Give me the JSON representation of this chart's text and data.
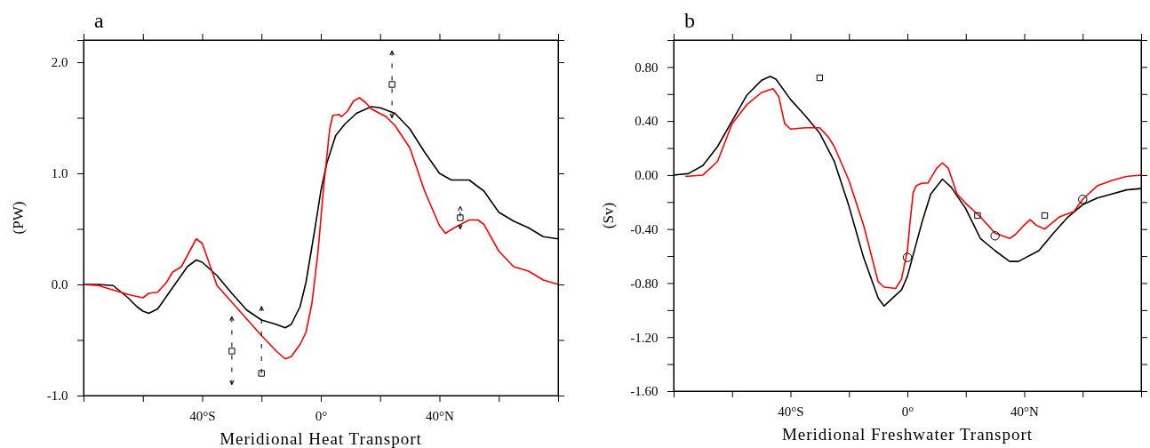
{
  "chart_data": [
    {
      "type": "line",
      "title": "a",
      "xlabel": "Meridional Heat Transport",
      "ylabel": "(PW)",
      "xlim": [
        -80,
        80
      ],
      "xticks": [
        {
          "value": -60,
          "label": null
        },
        {
          "value": -40,
          "label": "40°S"
        },
        {
          "value": -20,
          "label": null
        },
        {
          "value": 0,
          "label": "0°"
        },
        {
          "value": 20,
          "label": null
        },
        {
          "value": 40,
          "label": "40°N"
        },
        {
          "value": 60,
          "label": null
        }
      ],
      "ylim": [
        -1.0,
        2.2
      ],
      "yticks": [
        {
          "value": -1,
          "label": "-1.0"
        },
        {
          "value": -0.5,
          "label": null
        },
        {
          "value": 0,
          "label": "0.0"
        },
        {
          "value": 0.5,
          "label": null
        },
        {
          "value": 1,
          "label": "1.0"
        },
        {
          "value": 1.5,
          "label": null
        },
        {
          "value": 2,
          "label": "2.0"
        }
      ],
      "series": [
        {
          "color": "#000000",
          "x": [
            -80,
            -75,
            -70,
            -65,
            -62,
            -60,
            -58,
            -55,
            -50,
            -45,
            -42,
            -40,
            -35,
            -30,
            -25,
            -20,
            -15,
            -12,
            -10,
            -7,
            -5,
            -2,
            0,
            2,
            5,
            8,
            12,
            17,
            20,
            25,
            30,
            35,
            40,
            44,
            50,
            55,
            60,
            65,
            70,
            75,
            80
          ],
          "values": [
            0,
            0,
            -0.01,
            -0.12,
            -0.2,
            -0.24,
            -0.26,
            -0.22,
            -0.03,
            0.16,
            0.22,
            0.2,
            0.08,
            -0.08,
            -0.23,
            -0.32,
            -0.36,
            -0.39,
            -0.36,
            -0.2,
            0.02,
            0.5,
            0.84,
            1.09,
            1.34,
            1.44,
            1.54,
            1.6,
            1.59,
            1.54,
            1.4,
            1.19,
            1.0,
            0.94,
            0.94,
            0.84,
            0.65,
            0.57,
            0.51,
            0.43,
            0.41
          ]
        },
        {
          "color": "#ff0000",
          "x": [
            -80,
            -75,
            -70,
            -65,
            -60,
            -58,
            -55,
            -52,
            -50,
            -47,
            -45,
            -42,
            -40,
            -38,
            -35,
            -30,
            -25,
            -20,
            -15,
            -12,
            -10,
            -7,
            -5,
            -3,
            -1,
            1,
            3,
            4,
            6,
            7,
            9,
            11,
            13,
            15,
            17,
            22,
            25,
            30,
            35,
            40,
            42,
            45,
            50,
            53,
            55,
            60,
            65,
            70,
            75,
            80
          ],
          "values": [
            0,
            -0.01,
            -0.05,
            -0.09,
            -0.12,
            -0.08,
            -0.07,
            0.02,
            0.11,
            0.16,
            0.26,
            0.41,
            0.37,
            0.22,
            -0.01,
            -0.16,
            -0.31,
            -0.46,
            -0.6,
            -0.67,
            -0.65,
            -0.54,
            -0.43,
            -0.17,
            0.28,
            0.89,
            1.4,
            1.52,
            1.53,
            1.51,
            1.56,
            1.65,
            1.68,
            1.64,
            1.58,
            1.51,
            1.43,
            1.23,
            0.84,
            0.53,
            0.46,
            0.51,
            0.58,
            0.58,
            0.54,
            0.3,
            0.16,
            0.12,
            0.04,
            0
          ]
        },
        {
          "type": "scatter",
          "marker": "square",
          "color": "#000000",
          "x": [
            -30,
            -20,
            24,
            47
          ],
          "values": [
            -0.6,
            -0.8,
            1.8,
            0.6
          ],
          "errors": [
            [
              -0.9,
              -0.29
            ],
            [
              -0.8,
              -0.2
            ],
            [
              1.5,
              2.1
            ],
            [
              0.5,
              0.7
            ]
          ]
        }
      ]
    },
    {
      "type": "line",
      "title": "b",
      "xlabel": "Meridional Freshwater Transport",
      "ylabel": "(Sv)",
      "xlim": [
        -80,
        80
      ],
      "xticks": [
        {
          "value": -60,
          "label": null
        },
        {
          "value": -40,
          "label": "40°S"
        },
        {
          "value": -20,
          "label": null
        },
        {
          "value": 0,
          "label": "0°"
        },
        {
          "value": 20,
          "label": null
        },
        {
          "value": 40,
          "label": "40°N"
        },
        {
          "value": 60,
          "label": null
        }
      ],
      "ylim": [
        -1.6,
        1.0
      ],
      "yticks": [
        {
          "value": -1.6,
          "label": "-1.60"
        },
        {
          "value": -1.4,
          "label": null
        },
        {
          "value": -1.2,
          "label": "-1.20"
        },
        {
          "value": -1.0,
          "label": null
        },
        {
          "value": -0.8,
          "label": "-0.80"
        },
        {
          "value": -0.6,
          "label": null
        },
        {
          "value": -0.4,
          "label": "-0.40"
        },
        {
          "value": -0.2,
          "label": null
        },
        {
          "value": 0,
          "label": "0.00"
        },
        {
          "value": 0.2,
          "label": null
        },
        {
          "value": 0.4,
          "label": "0.40"
        },
        {
          "value": 0.6,
          "label": null
        },
        {
          "value": 0.8,
          "label": "0.80"
        }
      ],
      "series": [
        {
          "color": "#000000",
          "x": [
            -80,
            -75,
            -70,
            -65,
            -60,
            -55,
            -50,
            -47,
            -45,
            -40,
            -35,
            -30,
            -25,
            -20,
            -15,
            -10,
            -8,
            -5,
            -2,
            0,
            3,
            5,
            8,
            12,
            15,
            20,
            25,
            30,
            35,
            38,
            45,
            50,
            55,
            60,
            65,
            70,
            75,
            80
          ],
          "values": [
            0,
            0.01,
            0.07,
            0.21,
            0.4,
            0.59,
            0.7,
            0.73,
            0.71,
            0.56,
            0.44,
            0.31,
            0.1,
            -0.23,
            -0.61,
            -0.91,
            -0.97,
            -0.91,
            -0.85,
            -0.75,
            -0.51,
            -0.35,
            -0.14,
            -0.03,
            -0.09,
            -0.25,
            -0.47,
            -0.56,
            -0.64,
            -0.64,
            -0.56,
            -0.43,
            -0.31,
            -0.22,
            -0.17,
            -0.14,
            -0.11,
            -0.1
          ]
        },
        {
          "color": "#ff0000",
          "x": [
            -76,
            -70,
            -65,
            -60,
            -55,
            -50,
            -46,
            -44,
            -42,
            -40,
            -35,
            -30,
            -27,
            -25,
            -20,
            -15,
            -10,
            -8,
            -4,
            -2,
            0,
            1,
            2,
            3,
            5,
            7,
            10,
            12,
            14,
            17,
            20,
            25,
            30,
            35,
            37,
            40,
            42,
            44,
            47,
            52,
            57,
            60,
            65,
            70,
            75,
            80
          ],
          "values": [
            -0.01,
            0,
            0.1,
            0.38,
            0.52,
            0.61,
            0.64,
            0.58,
            0.38,
            0.34,
            0.35,
            0.35,
            0.28,
            0.21,
            -0.04,
            -0.37,
            -0.79,
            -0.83,
            -0.84,
            -0.77,
            -0.56,
            -0.33,
            -0.13,
            -0.08,
            -0.06,
            -0.06,
            0.05,
            0.09,
            0.05,
            -0.14,
            -0.21,
            -0.31,
            -0.43,
            -0.47,
            -0.44,
            -0.37,
            -0.33,
            -0.37,
            -0.4,
            -0.31,
            -0.27,
            -0.18,
            -0.08,
            -0.04,
            -0.01,
            0
          ]
        },
        {
          "type": "scatter",
          "marker": "square",
          "color": "#000000",
          "x": [
            -30,
            24,
            47
          ],
          "values": [
            0.72,
            -0.3,
            -0.3
          ]
        },
        {
          "type": "scatter",
          "marker": "circle",
          "color": "#000000",
          "x": [
            0,
            30,
            60
          ],
          "values": [
            -0.61,
            -0.45,
            -0.18
          ]
        }
      ]
    }
  ]
}
